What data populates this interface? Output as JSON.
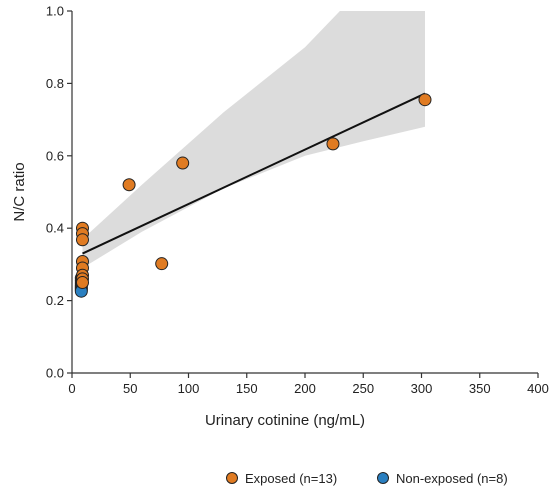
{
  "chart_data": {
    "type": "scatter",
    "xlabel": "Urinary cotinine (ng/mL)",
    "ylabel": "N/C ratio",
    "xlim": [
      0,
      400
    ],
    "ylim": [
      0.0,
      1.0
    ],
    "x_ticks": [
      "0",
      "50",
      "100",
      "150",
      "200",
      "250",
      "300",
      "350",
      "400"
    ],
    "y_ticks": [
      "0.0",
      "0.2",
      "0.4",
      "0.6",
      "0.8",
      "1.0"
    ],
    "grid": false,
    "legend_position": "bottom-right",
    "series": [
      {
        "name": "Exposed (n=13)",
        "color": "#e07b22",
        "points": [
          [
            303,
            0.755
          ],
          [
            224,
            0.633
          ],
          [
            95,
            0.58
          ],
          [
            49,
            0.52
          ],
          [
            77,
            0.302
          ],
          [
            9,
            0.4
          ],
          [
            9,
            0.385
          ],
          [
            9,
            0.368
          ],
          [
            9,
            0.308
          ],
          [
            9,
            0.29
          ],
          [
            9,
            0.27
          ],
          [
            9,
            0.26
          ],
          [
            9,
            0.25
          ]
        ]
      },
      {
        "name": "Non-exposed (n=8)",
        "color": "#2a7fc0",
        "points": [
          [
            8,
            0.262
          ],
          [
            8,
            0.255
          ],
          [
            8,
            0.248
          ],
          [
            8,
            0.242
          ],
          [
            8,
            0.238
          ],
          [
            8,
            0.234
          ],
          [
            8,
            0.23
          ],
          [
            8,
            0.226
          ]
        ]
      }
    ],
    "regression": {
      "line": [
        [
          9,
          0.33
        ],
        [
          303,
          0.772
        ]
      ],
      "ci_color": "#dcdcdc",
      "ci_upper": [
        [
          9,
          0.37
        ],
        [
          60,
          0.52
        ],
        [
          130,
          0.72
        ],
        [
          200,
          0.9
        ],
        [
          230,
          1.0
        ],
        [
          303,
          1.0
        ]
      ],
      "ci_lower": [
        [
          9,
          0.29
        ],
        [
          60,
          0.39
        ],
        [
          130,
          0.51
        ],
        [
          200,
          0.6
        ],
        [
          250,
          0.64
        ],
        [
          303,
          0.68
        ]
      ]
    }
  }
}
